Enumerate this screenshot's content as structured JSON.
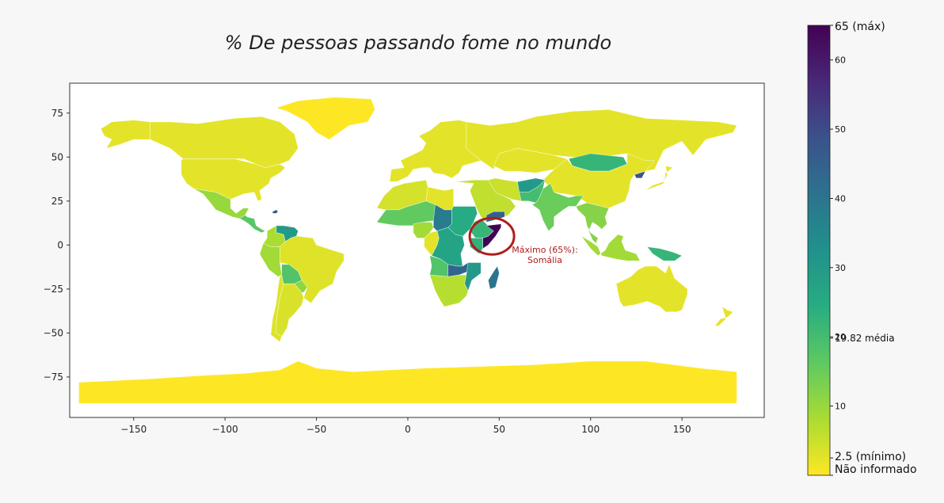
{
  "chart_data": {
    "type": "choropleth",
    "title": "% De pessoas passando fome no mundo",
    "x_ticks": [
      -150,
      -100,
      -50,
      0,
      50,
      100,
      150
    ],
    "y_ticks": [
      75,
      50,
      25,
      0,
      -25,
      -50,
      -75
    ],
    "xlim": [
      -185,
      195
    ],
    "ylim": [
      -98,
      92
    ],
    "colormap": "viridis_r",
    "colorbar": {
      "range": [
        0,
        65
      ],
      "ticks": [
        10,
        20,
        30,
        40,
        50,
        60
      ],
      "special_labels": [
        {
          "value": 65,
          "label": "65 (máx)"
        },
        {
          "value": 19.82,
          "label": "19.82 média"
        },
        {
          "value": 2.5,
          "label": "2.5 (mínimo)"
        },
        {
          "value": 0,
          "label": "Não informado"
        }
      ]
    },
    "annotation": {
      "lines": [
        "Máximo (65%):",
        "Somália"
      ],
      "lon": 46,
      "lat": 5,
      "color": "#b01c1c"
    },
    "regions": [
      {
        "name": "Antarctica",
        "value": 0
      },
      {
        "name": "Canada",
        "value": 2.5
      },
      {
        "name": "United States",
        "value": 2.5
      },
      {
        "name": "Alaska",
        "value": 2.5
      },
      {
        "name": "Greenland",
        "value": 0
      },
      {
        "name": "Mexico",
        "value": 10
      },
      {
        "name": "Central America",
        "value": 17
      },
      {
        "name": "Haiti",
        "value": 48
      },
      {
        "name": "Venezuela",
        "value": 30
      },
      {
        "name": "Colombia",
        "value": 8
      },
      {
        "name": "Peru",
        "value": 9
      },
      {
        "name": "Brazil",
        "value": 3
      },
      {
        "name": "Bolivia",
        "value": 18
      },
      {
        "name": "Argentina",
        "value": 3.5
      },
      {
        "name": "Chile",
        "value": 3
      },
      {
        "name": "Paraguay",
        "value": 11
      },
      {
        "name": "Europe",
        "value": 2.5
      },
      {
        "name": "Russia",
        "value": 2.5
      },
      {
        "name": "Kazakhstan",
        "value": 2.5
      },
      {
        "name": "Mongolia",
        "value": 22
      },
      {
        "name": "China",
        "value": 2.5
      },
      {
        "name": "North Korea",
        "value": 48
      },
      {
        "name": "Japan",
        "value": 2.5
      },
      {
        "name": "Middle East",
        "value": 6
      },
      {
        "name": "Iran",
        "value": 5
      },
      {
        "name": "Afghanistan",
        "value": 30
      },
      {
        "name": "Pakistan",
        "value": 20
      },
      {
        "name": "India",
        "value": 15
      },
      {
        "name": "Southeast Asia",
        "value": 12
      },
      {
        "name": "Indonesia",
        "value": 9
      },
      {
        "name": "Papua New Guinea",
        "value": 22
      },
      {
        "name": "Australia",
        "value": 2.5
      },
      {
        "name": "New Zealand",
        "value": 2.5
      },
      {
        "name": "North Africa",
        "value": 4
      },
      {
        "name": "Libya",
        "value": 2.5
      },
      {
        "name": "Sahel",
        "value": 16
      },
      {
        "name": "Chad",
        "value": 38
      },
      {
        "name": "Sudan",
        "value": 25
      },
      {
        "name": "Ethiopia",
        "value": 22
      },
      {
        "name": "Somalia",
        "value": 65
      },
      {
        "name": "Yemen",
        "value": 45
      },
      {
        "name": "Kenya",
        "value": 23
      },
      {
        "name": "Nigeria",
        "value": 9
      },
      {
        "name": "DR Congo",
        "value": 27
      },
      {
        "name": "Gabon/Congo",
        "value": 2.5
      },
      {
        "name": "Angola",
        "value": 18
      },
      {
        "name": "Zambia",
        "value": 44
      },
      {
        "name": "Mozambique",
        "value": 30
      },
      {
        "name": "Southern Africa",
        "value": 7
      },
      {
        "name": "Madagascar",
        "value": 40
      }
    ]
  }
}
